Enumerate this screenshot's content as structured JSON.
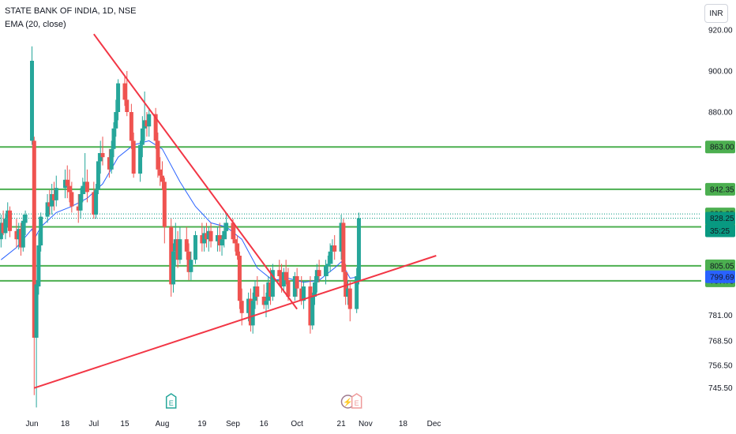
{
  "legend": {
    "symbol": "STATE BANK OF INDIA, 1D, NSE",
    "indicator": "EMA (20, close)"
  },
  "currency": "INR",
  "colors": {
    "up": "#26a69a",
    "down": "#ef5350",
    "ema": "#2962ff",
    "hline": "#4caf50",
    "trend": "#f23645",
    "last_price": "#089981",
    "ema_tag": "#2962ff"
  },
  "chart_data": {
    "type": "candlestick",
    "title": "STATE BANK OF INDIA, 1D, NSE",
    "ylim": [
      745.5,
      925.0
    ],
    "y_ticks": [
      "920.00",
      "900.00",
      "880.00",
      "781.00",
      "768.50",
      "756.50",
      "745.50"
    ],
    "x_ticks": [
      "Jun",
      "18",
      "Jul",
      "15",
      "Aug",
      "19",
      "Sep",
      "16",
      "Oct",
      "21",
      "Nov",
      "18",
      "Dec"
    ],
    "horizontal_levels": [
      {
        "label": "863.00",
        "value": 863.0
      },
      {
        "label": "842.35",
        "value": 842.35
      },
      {
        "label": "824.05",
        "value": 824.05
      },
      {
        "label": "805.05",
        "value": 805.05
      },
      {
        "label": "797.75",
        "value": 797.75
      }
    ],
    "dotted_levels": [
      {
        "label": "830.35",
        "value": 830.35
      },
      {
        "label": "828.25",
        "value": 828.25
      }
    ],
    "price_tags": [
      {
        "label": "830.35",
        "value": 830.35,
        "style": "hline"
      },
      {
        "label": "828.25",
        "value": 828.25,
        "style": "last_price"
      },
      {
        "label": "35:25",
        "value": 828.25,
        "style": "last_price",
        "note": "countdown"
      },
      {
        "label": "799.69",
        "value": 799.69,
        "style": "ema_tag"
      }
    ],
    "trendlines": [
      {
        "from": [
          "Jul 1",
          918.0
        ],
        "to": [
          "Oct 1",
          784.0
        ]
      },
      {
        "from": [
          "Jun 4",
          745.5
        ],
        "to": [
          "Dec 3",
          810.0
        ]
      }
    ],
    "markers": [
      {
        "date": "Aug 5",
        "symbol": "E",
        "kind": "earnings"
      },
      {
        "date": "Oct 24",
        "symbol": "⚡",
        "kind": "event"
      },
      {
        "date": "Oct 28",
        "symbol": "E",
        "kind": "earnings-upcoming"
      }
    ],
    "candles": [
      {
        "d": "May 20",
        "o": 818,
        "h": 830,
        "l": 814,
        "c": 826
      },
      {
        "d": "May 21",
        "o": 826,
        "h": 832,
        "l": 820,
        "c": 821
      },
      {
        "d": "May 22",
        "o": 821,
        "h": 830,
        "l": 818,
        "c": 828
      },
      {
        "d": "May 23",
        "o": 828,
        "h": 836,
        "l": 824,
        "c": 832
      },
      {
        "d": "May 24",
        "o": 832,
        "h": 834,
        "l": 819,
        "c": 822
      },
      {
        "d": "May 27",
        "o": 822,
        "h": 828,
        "l": 814,
        "c": 818
      },
      {
        "d": "May 28",
        "o": 818,
        "h": 826,
        "l": 813,
        "c": 823
      },
      {
        "d": "May 29",
        "o": 823,
        "h": 826,
        "l": 810,
        "c": 814
      },
      {
        "d": "May 30",
        "o": 814,
        "h": 830,
        "l": 812,
        "c": 827
      },
      {
        "d": "May 31",
        "o": 826,
        "h": 832,
        "l": 820,
        "c": 830
      },
      {
        "d": "Jun 3",
        "o": 866,
        "h": 912,
        "l": 864,
        "c": 905
      },
      {
        "d": "Jun 4",
        "o": 866,
        "h": 868,
        "l": 742,
        "c": 770
      },
      {
        "d": "Jun 5",
        "o": 770,
        "h": 798,
        "l": 736,
        "c": 796
      },
      {
        "d": "Jun 6",
        "o": 795,
        "h": 821,
        "l": 791,
        "c": 815
      },
      {
        "d": "Jun 7",
        "o": 815,
        "h": 831,
        "l": 812,
        "c": 829
      },
      {
        "d": "Jun 10",
        "o": 829,
        "h": 840,
        "l": 826,
        "c": 836
      },
      {
        "d": "Jun 11",
        "o": 836,
        "h": 842,
        "l": 830,
        "c": 834
      },
      {
        "d": "Jun 12",
        "o": 834,
        "h": 845,
        "l": 830,
        "c": 840
      },
      {
        "d": "Jun 13",
        "o": 840,
        "h": 846,
        "l": 832,
        "c": 837
      },
      {
        "d": "Jun 14",
        "o": 837,
        "h": 849,
        "l": 834,
        "c": 843
      },
      {
        "d": "Jun 18",
        "o": 843,
        "h": 852,
        "l": 838,
        "c": 847
      },
      {
        "d": "Jun 19",
        "o": 847,
        "h": 854,
        "l": 838,
        "c": 844
      },
      {
        "d": "Jun 20",
        "o": 844,
        "h": 852,
        "l": 836,
        "c": 841
      },
      {
        "d": "Jun 21",
        "o": 841,
        "h": 846,
        "l": 831,
        "c": 834
      },
      {
        "d": "Jun 24",
        "o": 834,
        "h": 840,
        "l": 826,
        "c": 832
      },
      {
        "d": "Jun 25",
        "o": 832,
        "h": 843,
        "l": 828,
        "c": 840
      },
      {
        "d": "Jun 26",
        "o": 840,
        "h": 848,
        "l": 836,
        "c": 844
      },
      {
        "d": "Jun 27",
        "o": 844,
        "h": 860,
        "l": 840,
        "c": 846
      },
      {
        "d": "Jun 28",
        "o": 846,
        "h": 852,
        "l": 836,
        "c": 841
      },
      {
        "d": "Jul 1",
        "o": 841,
        "h": 846,
        "l": 828,
        "c": 830
      },
      {
        "d": "Jul 2",
        "o": 830,
        "h": 845,
        "l": 828,
        "c": 842
      },
      {
        "d": "Jul 3",
        "o": 842,
        "h": 860,
        "l": 840,
        "c": 856
      },
      {
        "d": "Jul 4",
        "o": 856,
        "h": 866,
        "l": 850,
        "c": 860
      },
      {
        "d": "Jul 5",
        "o": 860,
        "h": 868,
        "l": 854,
        "c": 858
      },
      {
        "d": "Jul 8",
        "o": 858,
        "h": 862,
        "l": 848,
        "c": 852
      },
      {
        "d": "Jul 9",
        "o": 852,
        "h": 866,
        "l": 850,
        "c": 862
      },
      {
        "d": "Jul 10",
        "o": 862,
        "h": 875,
        "l": 858,
        "c": 872
      },
      {
        "d": "Jul 11",
        "o": 872,
        "h": 886,
        "l": 868,
        "c": 880
      },
      {
        "d": "Jul 12",
        "o": 880,
        "h": 896,
        "l": 876,
        "c": 894
      },
      {
        "d": "Jul 15",
        "o": 894,
        "h": 898,
        "l": 883,
        "c": 886
      },
      {
        "d": "Jul 16",
        "o": 886,
        "h": 900,
        "l": 878,
        "c": 880
      },
      {
        "d": "Jul 18",
        "o": 880,
        "h": 884,
        "l": 862,
        "c": 866
      },
      {
        "d": "Jul 19",
        "o": 866,
        "h": 870,
        "l": 848,
        "c": 850
      },
      {
        "d": "Jul 22",
        "o": 850,
        "h": 866,
        "l": 846,
        "c": 864
      },
      {
        "d": "Jul 23",
        "o": 864,
        "h": 878,
        "l": 858,
        "c": 872
      },
      {
        "d": "Jul 24",
        "o": 872,
        "h": 890,
        "l": 866,
        "c": 876
      },
      {
        "d": "Jul 25",
        "o": 876,
        "h": 880,
        "l": 868,
        "c": 873
      },
      {
        "d": "Jul 26",
        "o": 873,
        "h": 882,
        "l": 868,
        "c": 879
      },
      {
        "d": "Jul 29",
        "o": 879,
        "h": 882,
        "l": 862,
        "c": 866
      },
      {
        "d": "Jul 30",
        "o": 866,
        "h": 870,
        "l": 848,
        "c": 852
      },
      {
        "d": "Jul 31",
        "o": 852,
        "h": 858,
        "l": 844,
        "c": 849
      },
      {
        "d": "Aug 1",
        "o": 849,
        "h": 856,
        "l": 842,
        "c": 846
      },
      {
        "d": "Aug 2",
        "o": 846,
        "h": 848,
        "l": 816,
        "c": 824
      },
      {
        "d": "Aug 5",
        "o": 824,
        "h": 828,
        "l": 790,
        "c": 796
      },
      {
        "d": "Aug 6",
        "o": 796,
        "h": 816,
        "l": 792,
        "c": 812
      },
      {
        "d": "Aug 7",
        "o": 812,
        "h": 826,
        "l": 805,
        "c": 818
      },
      {
        "d": "Aug 8",
        "o": 818,
        "h": 822,
        "l": 804,
        "c": 808
      },
      {
        "d": "Aug 9",
        "o": 808,
        "h": 824,
        "l": 806,
        "c": 818
      },
      {
        "d": "Aug 12",
        "o": 818,
        "h": 824,
        "l": 808,
        "c": 812
      },
      {
        "d": "Aug 13",
        "o": 812,
        "h": 816,
        "l": 798,
        "c": 802
      },
      {
        "d": "Aug 14",
        "o": 802,
        "h": 812,
        "l": 798,
        "c": 808
      },
      {
        "d": "Aug 16",
        "o": 808,
        "h": 822,
        "l": 806,
        "c": 820
      },
      {
        "d": "Aug 19",
        "o": 820,
        "h": 826,
        "l": 812,
        "c": 816
      },
      {
        "d": "Aug 20",
        "o": 816,
        "h": 824,
        "l": 812,
        "c": 821
      },
      {
        "d": "Aug 21",
        "o": 821,
        "h": 826,
        "l": 814,
        "c": 818
      },
      {
        "d": "Aug 22",
        "o": 818,
        "h": 824,
        "l": 812,
        "c": 822
      },
      {
        "d": "Aug 23",
        "o": 822,
        "h": 826,
        "l": 814,
        "c": 817
      },
      {
        "d": "Aug 26",
        "o": 817,
        "h": 824,
        "l": 812,
        "c": 820
      },
      {
        "d": "Aug 27",
        "o": 820,
        "h": 826,
        "l": 812,
        "c": 815
      },
      {
        "d": "Aug 28",
        "o": 815,
        "h": 820,
        "l": 810,
        "c": 818
      },
      {
        "d": "Aug 29",
        "o": 818,
        "h": 826,
        "l": 814,
        "c": 822
      },
      {
        "d": "Aug 30",
        "o": 822,
        "h": 830,
        "l": 818,
        "c": 826
      },
      {
        "d": "Sep 2",
        "o": 826,
        "h": 828,
        "l": 816,
        "c": 818
      },
      {
        "d": "Sep 3",
        "o": 818,
        "h": 824,
        "l": 812,
        "c": 816
      },
      {
        "d": "Sep 4",
        "o": 816,
        "h": 820,
        "l": 808,
        "c": 810
      },
      {
        "d": "Sep 5",
        "o": 810,
        "h": 812,
        "l": 784,
        "c": 788
      },
      {
        "d": "Sep 6",
        "o": 788,
        "h": 794,
        "l": 776,
        "c": 782
      },
      {
        "d": "Sep 9",
        "o": 782,
        "h": 792,
        "l": 778,
        "c": 789
      },
      {
        "d": "Sep 10",
        "o": 789,
        "h": 794,
        "l": 773,
        "c": 776
      },
      {
        "d": "Sep 11",
        "o": 776,
        "h": 792,
        "l": 772,
        "c": 788
      },
      {
        "d": "Sep 12",
        "o": 788,
        "h": 798,
        "l": 784,
        "c": 795
      },
      {
        "d": "Sep 13",
        "o": 795,
        "h": 800,
        "l": 786,
        "c": 790
      },
      {
        "d": "Sep 16",
        "o": 790,
        "h": 796,
        "l": 784,
        "c": 786
      },
      {
        "d": "Sep 17",
        "o": 786,
        "h": 792,
        "l": 780,
        "c": 788
      },
      {
        "d": "Sep 18",
        "o": 788,
        "h": 800,
        "l": 784,
        "c": 797
      },
      {
        "d": "Sep 19",
        "o": 797,
        "h": 804,
        "l": 786,
        "c": 790
      },
      {
        "d": "Sep 20",
        "o": 790,
        "h": 806,
        "l": 788,
        "c": 803
      },
      {
        "d": "Sep 23",
        "o": 803,
        "h": 808,
        "l": 796,
        "c": 800
      },
      {
        "d": "Sep 24",
        "o": 800,
        "h": 806,
        "l": 792,
        "c": 795
      },
      {
        "d": "Sep 25",
        "o": 795,
        "h": 804,
        "l": 792,
        "c": 802
      },
      {
        "d": "Sep 26",
        "o": 802,
        "h": 808,
        "l": 796,
        "c": 798
      },
      {
        "d": "Sep 27",
        "o": 798,
        "h": 804,
        "l": 788,
        "c": 790
      },
      {
        "d": "Sep 30",
        "o": 790,
        "h": 802,
        "l": 788,
        "c": 800
      },
      {
        "d": "Oct 1",
        "o": 800,
        "h": 804,
        "l": 790,
        "c": 794
      },
      {
        "d": "Oct 3",
        "o": 794,
        "h": 800,
        "l": 786,
        "c": 788
      },
      {
        "d": "Oct 4",
        "o": 788,
        "h": 798,
        "l": 784,
        "c": 795
      },
      {
        "d": "Oct 7",
        "o": 795,
        "h": 800,
        "l": 772,
        "c": 776
      },
      {
        "d": "Oct 8",
        "o": 776,
        "h": 792,
        "l": 774,
        "c": 790
      },
      {
        "d": "Oct 9",
        "o": 790,
        "h": 800,
        "l": 786,
        "c": 797
      },
      {
        "d": "Oct 10",
        "o": 797,
        "h": 806,
        "l": 792,
        "c": 803
      },
      {
        "d": "Oct 11",
        "o": 803,
        "h": 808,
        "l": 797,
        "c": 800
      },
      {
        "d": "Oct 14",
        "o": 800,
        "h": 808,
        "l": 796,
        "c": 805
      },
      {
        "d": "Oct 15",
        "o": 805,
        "h": 810,
        "l": 800,
        "c": 806
      },
      {
        "d": "Oct 16",
        "o": 806,
        "h": 816,
        "l": 802,
        "c": 812
      },
      {
        "d": "Oct 17",
        "o": 812,
        "h": 818,
        "l": 806,
        "c": 815
      },
      {
        "d": "Oct 18",
        "o": 815,
        "h": 820,
        "l": 808,
        "c": 812
      },
      {
        "d": "Oct 21",
        "o": 812,
        "h": 830,
        "l": 808,
        "c": 826
      },
      {
        "d": "Oct 22",
        "o": 826,
        "h": 828,
        "l": 798,
        "c": 802
      },
      {
        "d": "Oct 23",
        "o": 802,
        "h": 806,
        "l": 786,
        "c": 790
      },
      {
        "d": "Oct 24",
        "o": 790,
        "h": 798,
        "l": 786,
        "c": 794
      },
      {
        "d": "Oct 25",
        "o": 794,
        "h": 798,
        "l": 778,
        "c": 784
      },
      {
        "d": "Oct 28",
        "o": 784,
        "h": 804,
        "l": 782,
        "c": 800
      },
      {
        "d": "Oct 29",
        "o": 798,
        "h": 831,
        "l": 796,
        "c": 828.25
      }
    ],
    "ema": [
      {
        "d": "May 20",
        "v": 808
      },
      {
        "d": "May 27",
        "v": 814
      },
      {
        "d": "Jun 3",
        "v": 823
      },
      {
        "d": "Jun 4",
        "v": 818
      },
      {
        "d": "Jun 7",
        "v": 824
      },
      {
        "d": "Jun 14",
        "v": 831
      },
      {
        "d": "Jun 21",
        "v": 834
      },
      {
        "d": "Jun 28",
        "v": 838
      },
      {
        "d": "Jul 5",
        "v": 845
      },
      {
        "d": "Jul 12",
        "v": 858
      },
      {
        "d": "Jul 19",
        "v": 864
      },
      {
        "d": "Jul 26",
        "v": 866
      },
      {
        "d": "Aug 1",
        "v": 862
      },
      {
        "d": "Aug 9",
        "v": 846
      },
      {
        "d": "Aug 16",
        "v": 834
      },
      {
        "d": "Aug 23",
        "v": 826
      },
      {
        "d": "Aug 30",
        "v": 824
      },
      {
        "d": "Sep 6",
        "v": 818
      },
      {
        "d": "Sep 13",
        "v": 804
      },
      {
        "d": "Sep 20",
        "v": 798
      },
      {
        "d": "Sep 27",
        "v": 799
      },
      {
        "d": "Oct 4",
        "v": 797
      },
      {
        "d": "Oct 11",
        "v": 798
      },
      {
        "d": "Oct 18",
        "v": 804
      },
      {
        "d": "Oct 21",
        "v": 807
      },
      {
        "d": "Oct 25",
        "v": 799
      },
      {
        "d": "Oct 29",
        "v": 799.69
      }
    ]
  }
}
